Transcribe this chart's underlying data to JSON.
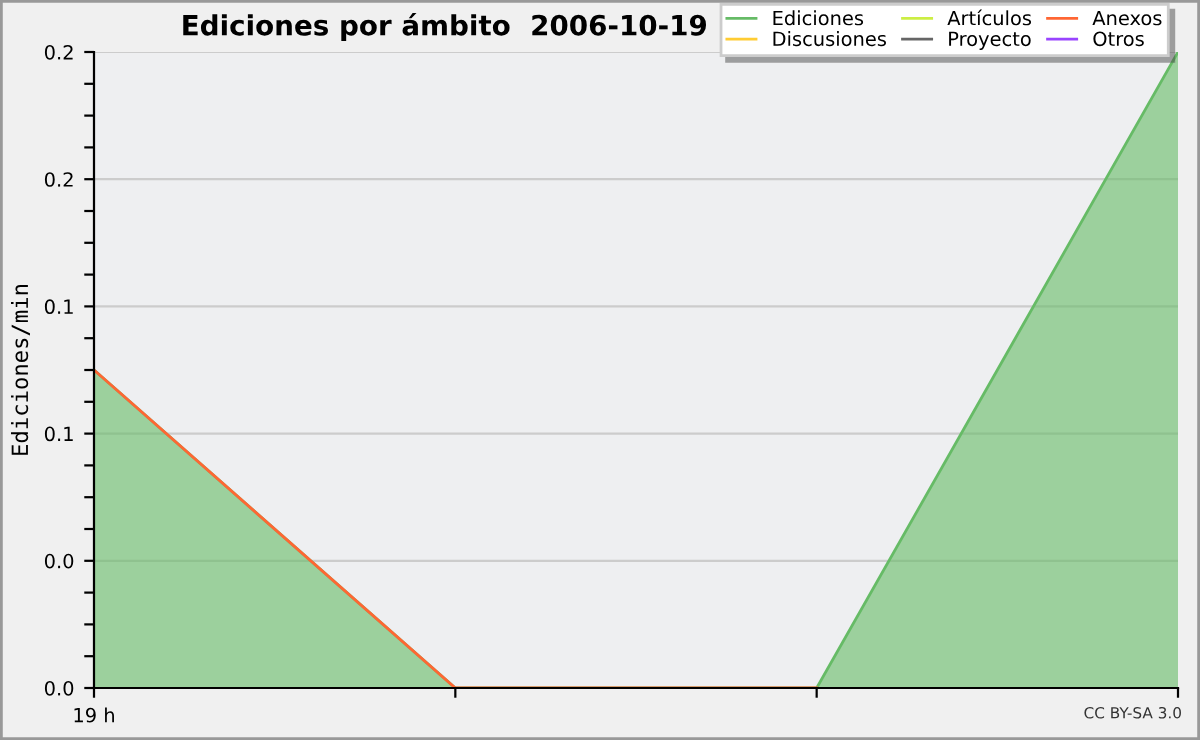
{
  "chart_data": {
    "type": "area",
    "title": "Ediciones por ámbito  2006-10-19",
    "ylabel": "Ediciones/min",
    "categories": [
      "19 h",
      null,
      null,
      null
    ],
    "series": [
      {
        "name": "Ediciones",
        "color": "#66bb66",
        "values": [
          0.1,
          0,
          0,
          0.2
        ]
      },
      {
        "name": "Discusiones",
        "color": "#ffcc33",
        "type": "line",
        "values": [
          null,
          null,
          null,
          null
        ]
      },
      {
        "name": "Artículos",
        "color": "#ccee44",
        "type": "line",
        "values": [
          null,
          null,
          null,
          null
        ]
      },
      {
        "name": "Proyecto",
        "color": "#666666",
        "type": "line",
        "values": [
          null,
          null,
          null,
          null
        ]
      },
      {
        "name": "Anexos",
        "color": "#ff6633",
        "type": "line",
        "values": [
          0.1,
          0,
          0,
          null
        ]
      },
      {
        "name": "Otros",
        "color": "#9944ff",
        "type": "line",
        "values": [
          null,
          null,
          null,
          null
        ]
      }
    ],
    "ylim": [
      0,
      0.2
    ],
    "yticks": [
      {
        "value": 0,
        "label": "0.0"
      },
      {
        "value": 0.01,
        "label": null
      },
      {
        "value": 0.02,
        "label": null
      },
      {
        "value": 0.03,
        "label": null
      },
      {
        "value": 0.04,
        "label": "0.0"
      },
      {
        "value": 0.05,
        "label": null
      },
      {
        "value": 0.06,
        "label": null
      },
      {
        "value": 0.07,
        "label": null
      },
      {
        "value": 0.08,
        "label": "0.1"
      },
      {
        "value": 0.09,
        "label": null
      },
      {
        "value": 0.1,
        "label": null
      },
      {
        "value": 0.11,
        "label": null
      },
      {
        "value": 0.12,
        "label": "0.1"
      },
      {
        "value": 0.13,
        "label": null
      },
      {
        "value": 0.14,
        "label": null
      },
      {
        "value": 0.15,
        "label": null
      },
      {
        "value": 0.16,
        "label": "0.2"
      },
      {
        "value": 0.17,
        "label": null
      },
      {
        "value": 0.18,
        "label": null
      },
      {
        "value": 0.19,
        "label": null
      },
      {
        "value": 0.2,
        "label": "0.2"
      }
    ],
    "grid": "y",
    "legend": "top right",
    "annotations": [
      "CC BY-SA 3.0"
    ]
  }
}
